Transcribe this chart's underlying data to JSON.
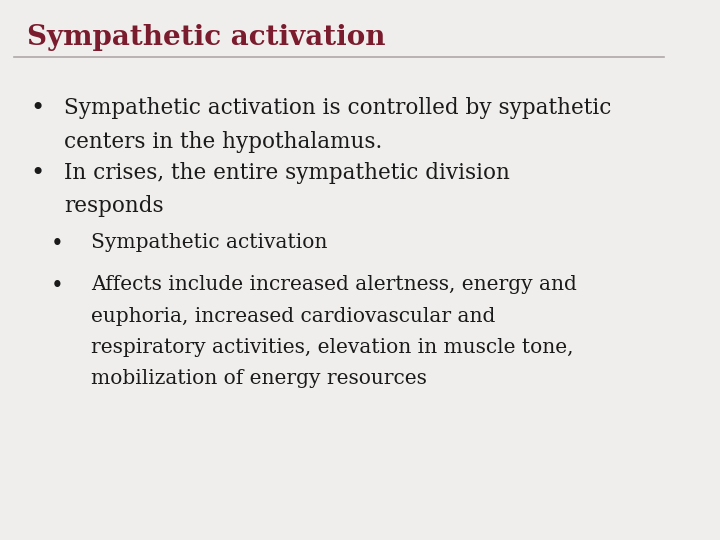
{
  "title": "Sympathetic activation",
  "title_color": "#7B1C2E",
  "title_fontsize": 20,
  "bg_color": "#F0EEEC",
  "line_color": "#B0A8A8",
  "body_color": "#1A1A1A",
  "body_fontsize": 15.5,
  "sub_fontsize": 14.5,
  "bullet_color": "#1A1A1A",
  "bullet1_line1": "Sympathetic activation is controlled by sypathetic",
  "bullet1_line2": "centers in the hypothalamus.",
  "bullet2_line1": "In crises, the entire sympathetic division",
  "bullet2_line2": "responds",
  "sub_bullet1": "Sympathetic activation",
  "sub_bullet2_line1": "Affects include increased alertness, energy and",
  "sub_bullet2_line2": "euphoria, increased cardiovascular and",
  "sub_bullet2_line3": "respiratory activities, elevation in muscle tone,",
  "sub_bullet2_line4": "mobilization of energy resources"
}
